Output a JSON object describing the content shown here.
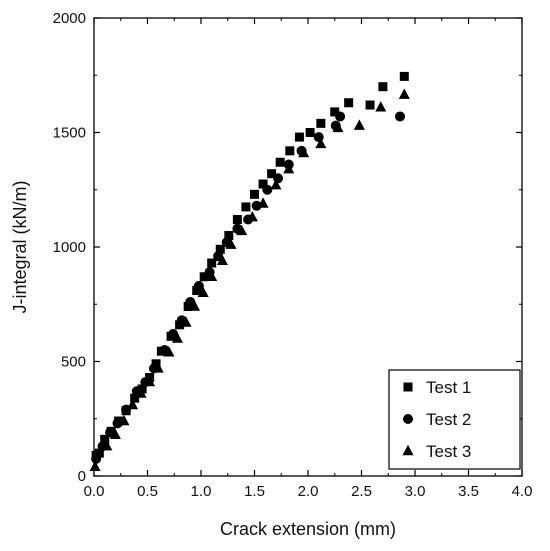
{
  "chart_data": {
    "type": "scatter",
    "title": "",
    "xlabel": "Crack extension (mm)",
    "ylabel": "J-integral (kN/m)",
    "xlim": [
      0.0,
      4.0
    ],
    "ylim": [
      0,
      2000
    ],
    "x_ticks": [
      "0.0",
      "0.5",
      "1.0",
      "1.5",
      "2.0",
      "2.5",
      "3.0",
      "3.5",
      "4.0"
    ],
    "y_ticks": [
      "0",
      "500",
      "1000",
      "1500",
      "2000"
    ],
    "grid": false,
    "legend_position": "bottom-right",
    "series": [
      {
        "name": "Test 1",
        "marker": "square",
        "color": "#000000",
        "points": [
          [
            0.02,
            90
          ],
          [
            0.05,
            100
          ],
          [
            0.1,
            160
          ],
          [
            0.16,
            195
          ],
          [
            0.23,
            240
          ],
          [
            0.3,
            285
          ],
          [
            0.38,
            340
          ],
          [
            0.45,
            380
          ],
          [
            0.52,
            430
          ],
          [
            0.58,
            490
          ],
          [
            0.63,
            545
          ],
          [
            0.72,
            610
          ],
          [
            0.8,
            660
          ],
          [
            0.88,
            740
          ],
          [
            0.96,
            810
          ],
          [
            1.03,
            870
          ],
          [
            1.1,
            930
          ],
          [
            1.18,
            990
          ],
          [
            1.26,
            1050
          ],
          [
            1.34,
            1120
          ],
          [
            1.42,
            1175
          ],
          [
            1.5,
            1230
          ],
          [
            1.58,
            1275
          ],
          [
            1.66,
            1320
          ],
          [
            1.74,
            1370
          ],
          [
            1.83,
            1420
          ],
          [
            1.92,
            1480
          ],
          [
            2.02,
            1500
          ],
          [
            2.12,
            1540
          ],
          [
            2.25,
            1590
          ],
          [
            2.38,
            1630
          ],
          [
            2.58,
            1620
          ],
          [
            2.7,
            1700
          ],
          [
            2.9,
            1745
          ]
        ]
      },
      {
        "name": "Test 2",
        "marker": "circle",
        "color": "#000000",
        "points": [
          [
            0.02,
            75
          ],
          [
            0.08,
            130
          ],
          [
            0.15,
            190
          ],
          [
            0.22,
            230
          ],
          [
            0.3,
            290
          ],
          [
            0.4,
            370
          ],
          [
            0.48,
            410
          ],
          [
            0.56,
            470
          ],
          [
            0.66,
            550
          ],
          [
            0.74,
            620
          ],
          [
            0.82,
            680
          ],
          [
            0.9,
            760
          ],
          [
            0.98,
            830
          ],
          [
            1.08,
            890
          ],
          [
            1.16,
            960
          ],
          [
            1.24,
            1020
          ],
          [
            1.34,
            1080
          ],
          [
            1.44,
            1120
          ],
          [
            1.52,
            1180
          ],
          [
            1.62,
            1250
          ],
          [
            1.72,
            1300
          ],
          [
            1.82,
            1360
          ],
          [
            1.94,
            1420
          ],
          [
            2.1,
            1480
          ],
          [
            2.26,
            1530
          ],
          [
            2.3,
            1570
          ],
          [
            2.86,
            1570
          ]
        ]
      },
      {
        "name": "Test 3",
        "marker": "triangle",
        "color": "#000000",
        "points": [
          [
            0.01,
            40
          ],
          [
            0.12,
            130
          ],
          [
            0.2,
            180
          ],
          [
            0.28,
            240
          ],
          [
            0.36,
            310
          ],
          [
            0.44,
            360
          ],
          [
            0.52,
            410
          ],
          [
            0.6,
            470
          ],
          [
            0.7,
            540
          ],
          [
            0.78,
            600
          ],
          [
            0.86,
            670
          ],
          [
            0.94,
            740
          ],
          [
            1.02,
            800
          ],
          [
            1.1,
            870
          ],
          [
            1.2,
            940
          ],
          [
            1.28,
            1010
          ],
          [
            1.38,
            1070
          ],
          [
            1.48,
            1130
          ],
          [
            1.58,
            1190
          ],
          [
            1.7,
            1270
          ],
          [
            1.82,
            1340
          ],
          [
            1.96,
            1410
          ],
          [
            2.12,
            1450
          ],
          [
            2.28,
            1520
          ],
          [
            2.48,
            1530
          ],
          [
            2.68,
            1610
          ],
          [
            2.9,
            1665
          ]
        ]
      }
    ]
  }
}
